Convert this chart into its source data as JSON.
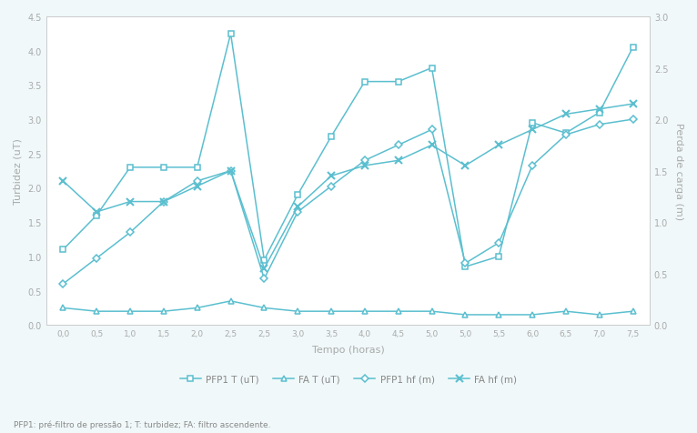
{
  "time_labels": [
    "0,0",
    "0,5",
    "1,0",
    "1,5",
    "2,0",
    "2,5",
    "2,5",
    "3,0",
    "3,5",
    "4,0",
    "4,5",
    "5,0",
    "5,0",
    "5,5",
    "6,0",
    "6,5",
    "7,0",
    "7,5"
  ],
  "pfp1_T": [
    1.1,
    1.6,
    2.3,
    2.3,
    2.3,
    4.25,
    0.95,
    1.9,
    2.75,
    3.55,
    3.55,
    3.75,
    0.85,
    1.0,
    2.95,
    2.8,
    3.1,
    4.05
  ],
  "fa_T": [
    0.25,
    0.2,
    0.2,
    0.2,
    0.25,
    0.35,
    0.25,
    0.2,
    0.2,
    0.2,
    0.2,
    0.2,
    0.15,
    0.15,
    0.15,
    0.2,
    0.15,
    0.2
  ],
  "pfp1_hf": [
    0.4,
    0.65,
    0.9,
    1.2,
    1.4,
    1.5,
    0.45,
    1.1,
    1.35,
    1.6,
    1.75,
    1.9,
    0.6,
    0.8,
    1.55,
    1.85,
    1.95,
    2.0
  ],
  "fa_hf": [
    1.4,
    1.1,
    1.2,
    1.2,
    1.35,
    1.5,
    0.55,
    1.15,
    1.45,
    1.55,
    1.6,
    1.75,
    1.55,
    1.75,
    1.9,
    2.05,
    2.1,
    2.15
  ],
  "color": "#5bbfcf",
  "ylabel_left": "Turbidez (uT)",
  "ylabel_right": "Perda de carga (m)",
  "xlabel": "Tempo (horas)",
  "ylim_left": [
    0.0,
    4.5
  ],
  "ylim_right": [
    0.0,
    3.0
  ],
  "yticks_left": [
    0.0,
    0.5,
    1.0,
    1.5,
    2.0,
    2.5,
    3.0,
    3.5,
    4.0,
    4.5
  ],
  "yticks_right": [
    0.0,
    0.5,
    1.0,
    1.5,
    2.0,
    2.5,
    3.0
  ],
  "legend_labels": [
    "PFP1 T (uT)",
    "FA T (uT)",
    "PFP1 hf (m)",
    "FA hf (m)"
  ],
  "footnote": "PFP1: pré-filtro de pressão 1; T: turbidez; FA: filtro ascendente.",
  "bg_color": "#f0f8f9"
}
